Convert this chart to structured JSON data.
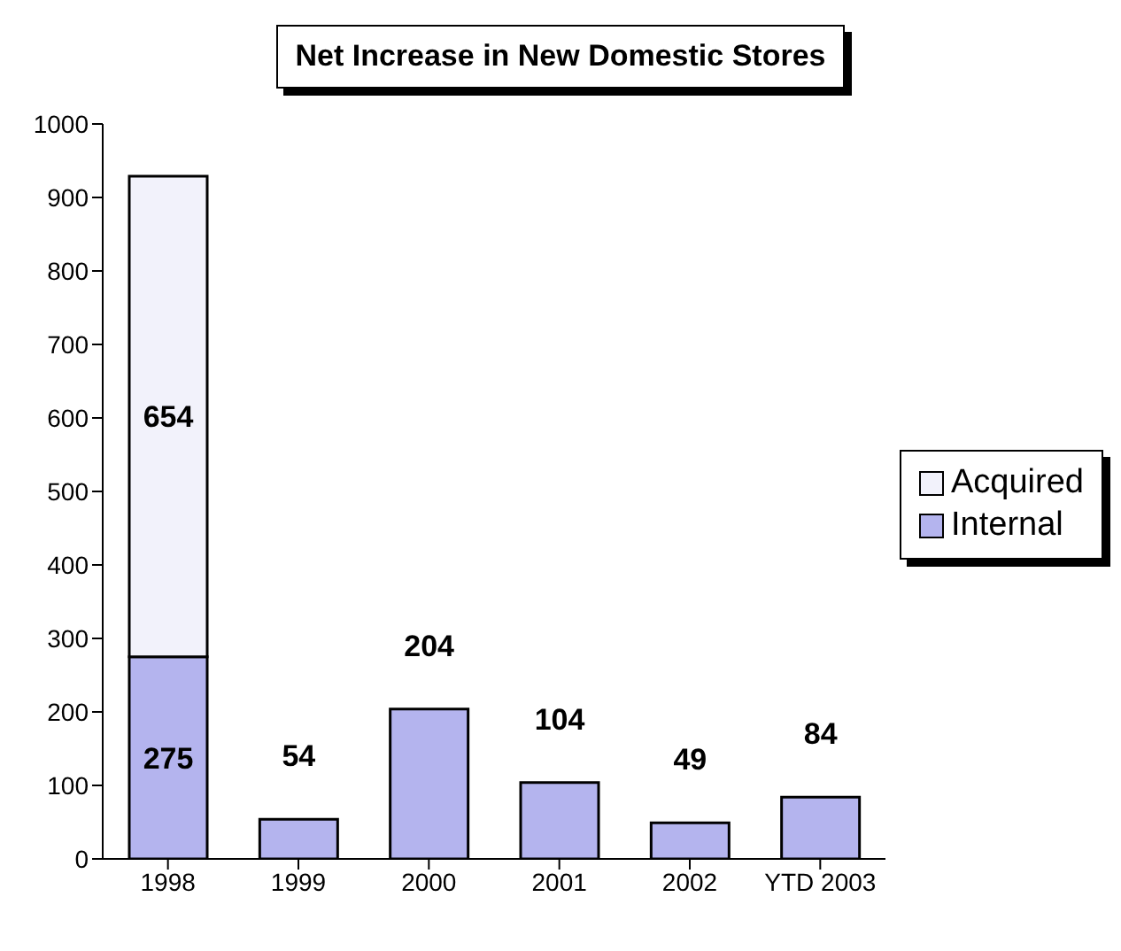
{
  "chart_data": {
    "type": "bar",
    "title": "Net Increase in New Domestic Stores",
    "categories": [
      "1998",
      "1999",
      "2000",
      "2001",
      "2002",
      "YTD 2003"
    ],
    "series": [
      {
        "name": "Internal",
        "color": "#b4b4ee",
        "values": [
          275,
          54,
          204,
          104,
          49,
          84
        ]
      },
      {
        "name": "Acquired",
        "color": "#f2f2fb",
        "values": [
          654,
          null,
          null,
          null,
          null,
          null
        ]
      }
    ],
    "stacked": true,
    "ylim": [
      0,
      1000
    ],
    "yticks": [
      0,
      100,
      200,
      300,
      400,
      500,
      600,
      700,
      800,
      900,
      1000
    ],
    "grid": false,
    "legend": "right",
    "data_labels": true
  }
}
